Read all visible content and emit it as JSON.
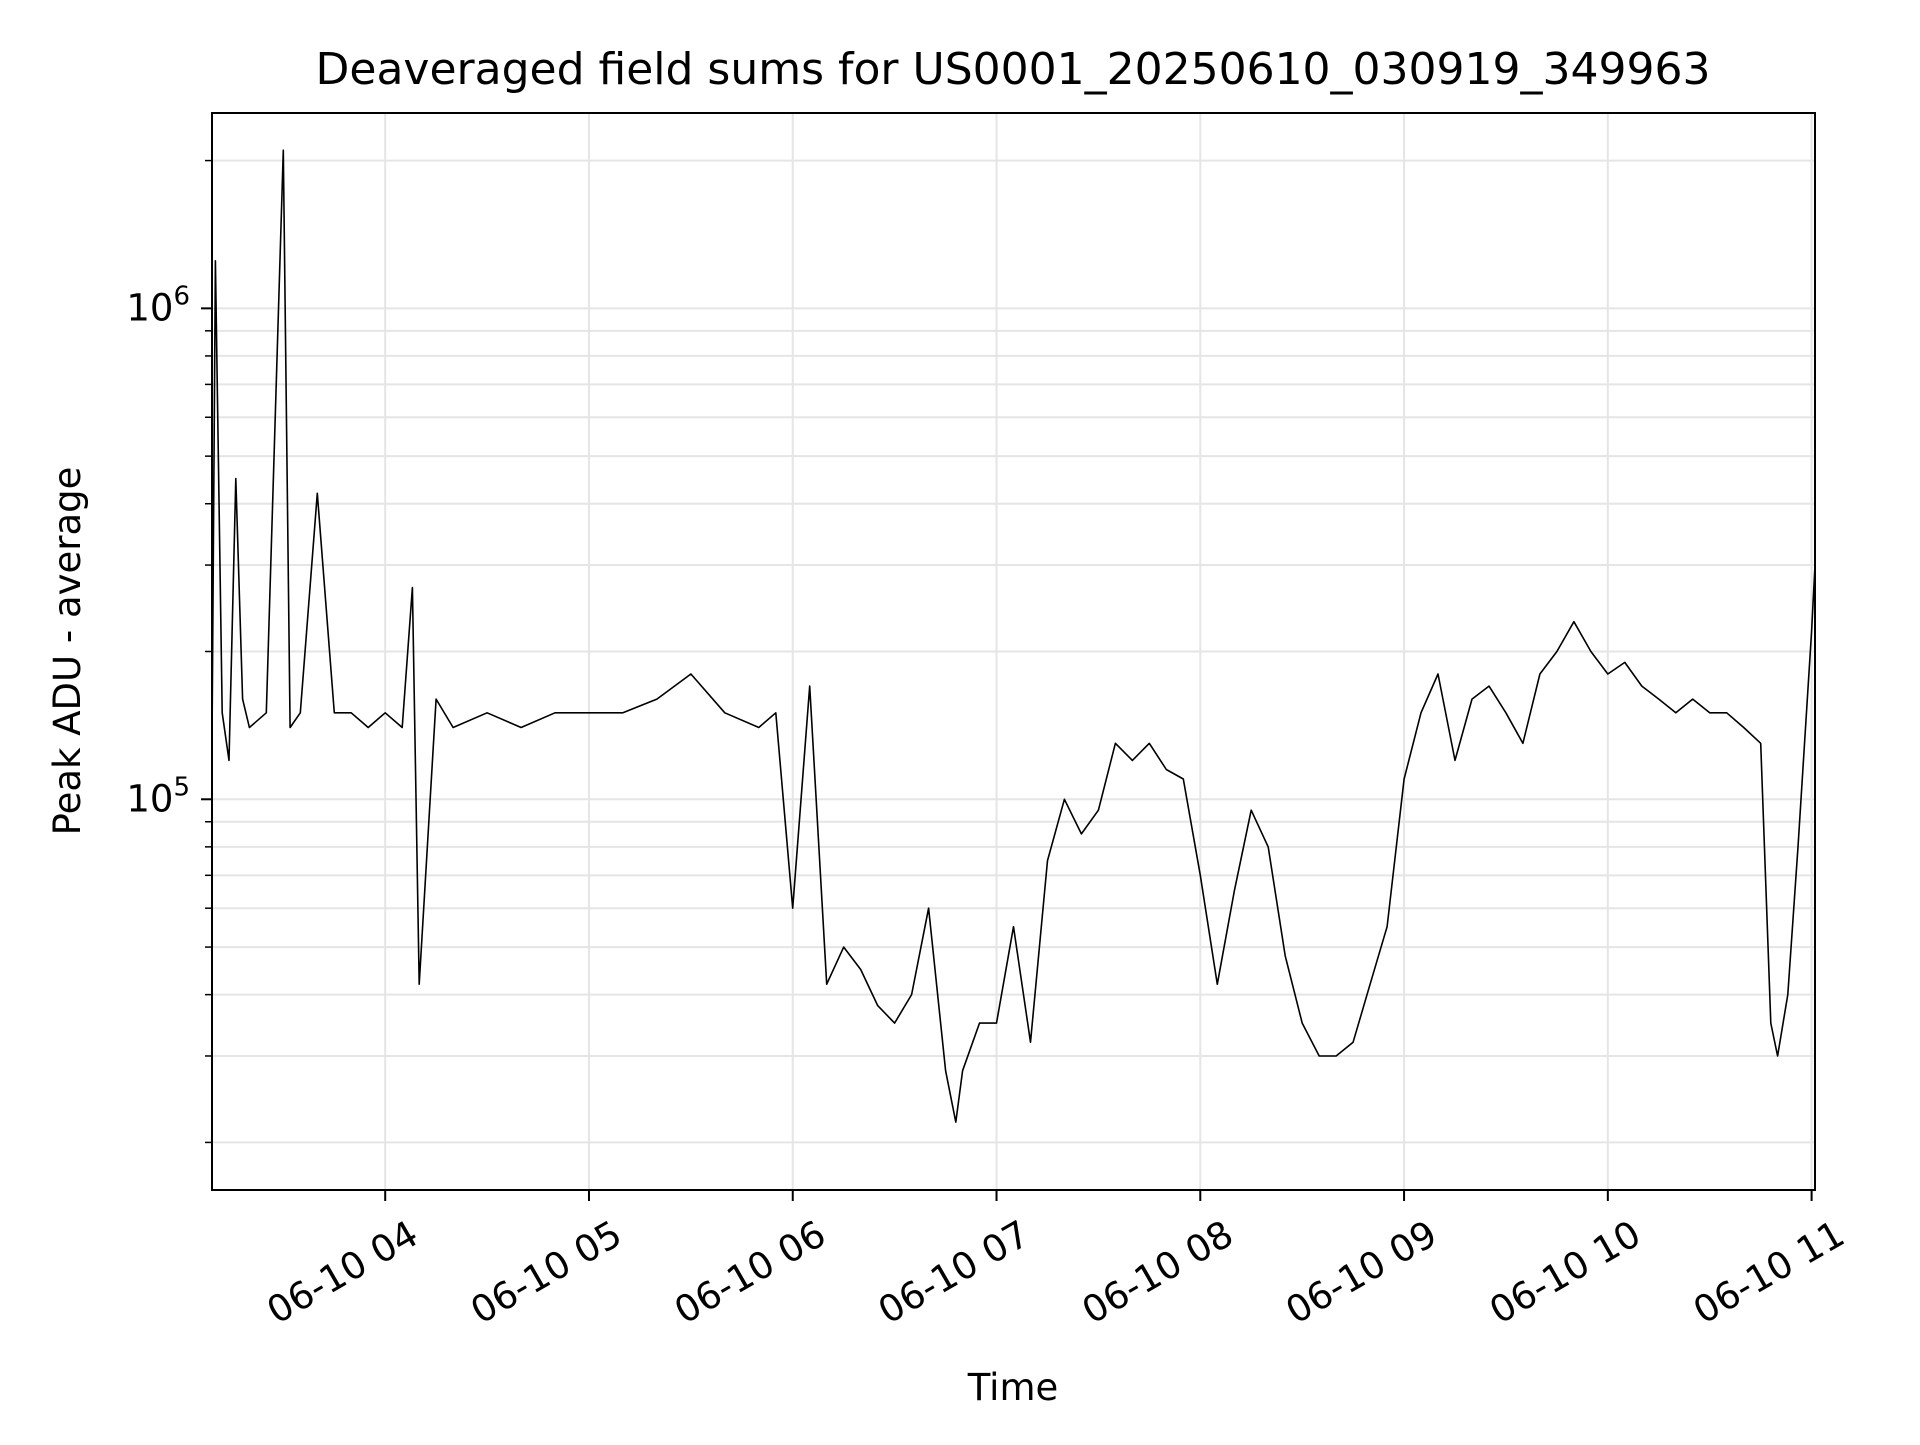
{
  "chart_data": {
    "type": "line",
    "title": "Deaveraged field sums for US0001_20250610_030919_349963",
    "xlabel": "Time",
    "ylabel": "Peak ADU - average",
    "yscale": "log",
    "ylim": [
      16000,
      2500000
    ],
    "xlim": [
      "06-10 03:09",
      "06-10 11:01"
    ],
    "grid": true,
    "line_color": "#000000",
    "grid_color": "#e5e5e5",
    "x_ticks": [
      {
        "label": "06-10 04",
        "time": "06-10 04:00"
      },
      {
        "label": "06-10 05",
        "time": "06-10 05:00"
      },
      {
        "label": "06-10 06",
        "time": "06-10 06:00"
      },
      {
        "label": "06-10 07",
        "time": "06-10 07:00"
      },
      {
        "label": "06-10 08",
        "time": "06-10 08:00"
      },
      {
        "label": "06-10 09",
        "time": "06-10 09:00"
      },
      {
        "label": "06-10 10",
        "time": "06-10 10:00"
      },
      {
        "label": "06-10 11",
        "time": "06-10 11:00"
      }
    ],
    "y_ticks": [
      {
        "base": "10",
        "exp": "5",
        "value": 100000
      },
      {
        "base": "10",
        "exp": "6",
        "value": 1000000
      }
    ],
    "series": [
      {
        "color": "#000000",
        "x": [
          "06-10 03:09",
          "06-10 03:10",
          "06-10 03:12",
          "06-10 03:14",
          "06-10 03:16",
          "06-10 03:18",
          "06-10 03:20",
          "06-10 03:25",
          "06-10 03:30",
          "06-10 03:32",
          "06-10 03:35",
          "06-10 03:40",
          "06-10 03:45",
          "06-10 03:50",
          "06-10 03:55",
          "06-10 04:00",
          "06-10 04:05",
          "06-10 04:08",
          "06-10 04:10",
          "06-10 04:15",
          "06-10 04:20",
          "06-10 04:30",
          "06-10 04:40",
          "06-10 04:50",
          "06-10 05:00",
          "06-10 05:10",
          "06-10 05:20",
          "06-10 05:30",
          "06-10 05:40",
          "06-10 05:50",
          "06-10 05:55",
          "06-10 06:00",
          "06-10 06:05",
          "06-10 06:10",
          "06-10 06:15",
          "06-10 06:20",
          "06-10 06:25",
          "06-10 06:30",
          "06-10 06:35",
          "06-10 06:40",
          "06-10 06:45",
          "06-10 06:48",
          "06-10 06:50",
          "06-10 06:55",
          "06-10 07:00",
          "06-10 07:05",
          "06-10 07:10",
          "06-10 07:15",
          "06-10 07:20",
          "06-10 07:25",
          "06-10 07:30",
          "06-10 07:35",
          "06-10 07:40",
          "06-10 07:45",
          "06-10 07:50",
          "06-10 07:55",
          "06-10 08:00",
          "06-10 08:05",
          "06-10 08:10",
          "06-10 08:15",
          "06-10 08:20",
          "06-10 08:25",
          "06-10 08:30",
          "06-10 08:35",
          "06-10 08:40",
          "06-10 08:45",
          "06-10 08:50",
          "06-10 08:55",
          "06-10 09:00",
          "06-10 09:05",
          "06-10 09:10",
          "06-10 09:15",
          "06-10 09:20",
          "06-10 09:25",
          "06-10 09:30",
          "06-10 09:35",
          "06-10 09:40",
          "06-10 09:45",
          "06-10 09:50",
          "06-10 09:55",
          "06-10 10:00",
          "06-10 10:05",
          "06-10 10:10",
          "06-10 10:15",
          "06-10 10:20",
          "06-10 10:25",
          "06-10 10:30",
          "06-10 10:35",
          "06-10 10:40",
          "06-10 10:45",
          "06-10 10:48",
          "06-10 10:50",
          "06-10 10:53",
          "06-10 10:56",
          "06-10 11:00",
          "06-10 11:01"
        ],
        "y": [
          130000,
          1250000,
          150000,
          120000,
          450000,
          160000,
          140000,
          150000,
          2100000,
          140000,
          150000,
          420000,
          150000,
          150000,
          140000,
          150000,
          140000,
          270000,
          42000,
          160000,
          140000,
          150000,
          140000,
          150000,
          150000,
          150000,
          160000,
          180000,
          150000,
          140000,
          150000,
          60000,
          170000,
          42000,
          50000,
          45000,
          38000,
          35000,
          40000,
          60000,
          28000,
          22000,
          28000,
          35000,
          35000,
          55000,
          32000,
          75000,
          100000,
          85000,
          95000,
          130000,
          120000,
          130000,
          115000,
          110000,
          70000,
          42000,
          65000,
          95000,
          80000,
          48000,
          35000,
          30000,
          30000,
          32000,
          42000,
          55000,
          110000,
          150000,
          180000,
          120000,
          160000,
          170000,
          150000,
          130000,
          180000,
          200000,
          230000,
          200000,
          180000,
          190000,
          170000,
          160000,
          150000,
          160000,
          150000,
          150000,
          140000,
          130000,
          35000,
          30000,
          40000,
          80000,
          220000,
          300000
        ]
      }
    ]
  }
}
